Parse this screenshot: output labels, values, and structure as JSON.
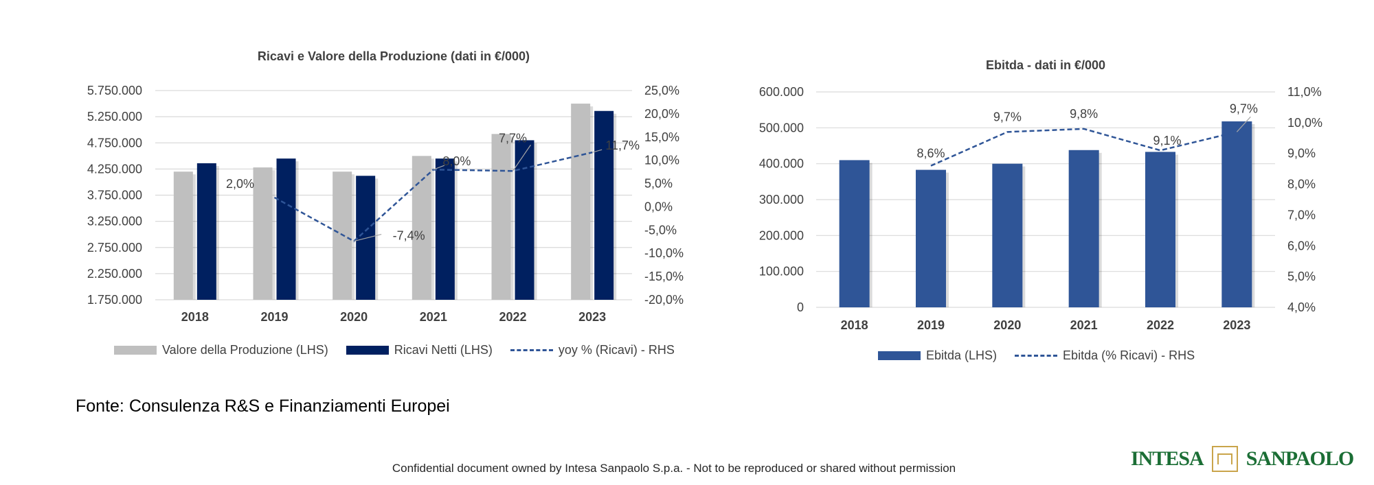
{
  "chart_data": [
    {
      "type": "bar",
      "title": "Ricavi e Valore della Produzione (dati in €/000)",
      "categories": [
        "2018",
        "2019",
        "2020",
        "2021",
        "2022",
        "2023"
      ],
      "series": [
        {
          "name": "Valore della Produzione (LHS)",
          "type": "bar",
          "axis": "left",
          "color": "#BFBFBF",
          "values": [
            4200000,
            4280000,
            4200000,
            4500000,
            4920000,
            5500000
          ]
        },
        {
          "name": "Ricavi Netti (LHS)",
          "type": "bar",
          "axis": "left",
          "color": "#002060",
          "values": [
            4360000,
            4450000,
            4120000,
            4450000,
            4800000,
            5360000
          ]
        },
        {
          "name": "yoy % (Ricavi) - RHS",
          "type": "line",
          "style": "dashed",
          "axis": "right",
          "color": "#2F5597",
          "values": [
            null,
            2.0,
            -7.4,
            8.0,
            7.7,
            11.7
          ],
          "data_labels": [
            "",
            "2,0%",
            "-7,4%",
            "8,0%",
            "7,7%",
            "11,7%"
          ]
        }
      ],
      "y_left": {
        "min": 1750000,
        "max": 5750000,
        "ticks": [
          "5.750.000",
          "5.250.000",
          "4.750.000",
          "4.250.000",
          "3.750.000",
          "3.250.000",
          "2.750.000",
          "2.250.000",
          "1.750.000"
        ]
      },
      "y_right": {
        "min": -20,
        "max": 25,
        "ticks": [
          "25,0%",
          "20,0%",
          "15,0%",
          "10,0%",
          "5,0%",
          "0,0%",
          "-5,0%",
          "-10,0%",
          "-15,0%",
          "-20,0%"
        ]
      },
      "grid": true,
      "legend_position": "bottom"
    },
    {
      "type": "bar",
      "title": "Ebitda - dati in €/000",
      "categories": [
        "2018",
        "2019",
        "2020",
        "2021",
        "2022",
        "2023"
      ],
      "series": [
        {
          "name": "Ebitda (LHS)",
          "type": "bar",
          "axis": "left",
          "color": "#2F5597",
          "values": [
            410000,
            383000,
            400000,
            438000,
            433000,
            518000
          ]
        },
        {
          "name": "Ebitda (% Ricavi) - RHS",
          "type": "line",
          "style": "dashed",
          "axis": "right",
          "color": "#2F5597",
          "values": [
            null,
            8.6,
            9.7,
            9.8,
            9.1,
            9.7
          ],
          "data_labels": [
            "",
            "8,6%",
            "9,7%",
            "9,8%",
            "9,1%",
            "9,7%"
          ]
        }
      ],
      "y_left": {
        "min": 0,
        "max": 600000,
        "ticks": [
          "600.000",
          "500.000",
          "400.000",
          "300.000",
          "200.000",
          "100.000",
          "0"
        ]
      },
      "y_right": {
        "min": 4,
        "max": 11,
        "ticks": [
          "11,0%",
          "10,0%",
          "9,0%",
          "8,0%",
          "7,0%",
          "6,0%",
          "5,0%",
          "4,0%"
        ]
      },
      "grid": true,
      "legend_position": "bottom"
    }
  ],
  "footer": {
    "source": "Fonte: Consulenza R&S e Finanziamenti Europei",
    "confidential": "Confidential document owned by Intesa Sanpaolo S.p.a. - Not to be reproduced or shared without permission",
    "logo_left": "INTESA",
    "logo_right": "SANPAOLO",
    "brand_color": "#1B6E35",
    "accent_color": "#C9A44A"
  }
}
